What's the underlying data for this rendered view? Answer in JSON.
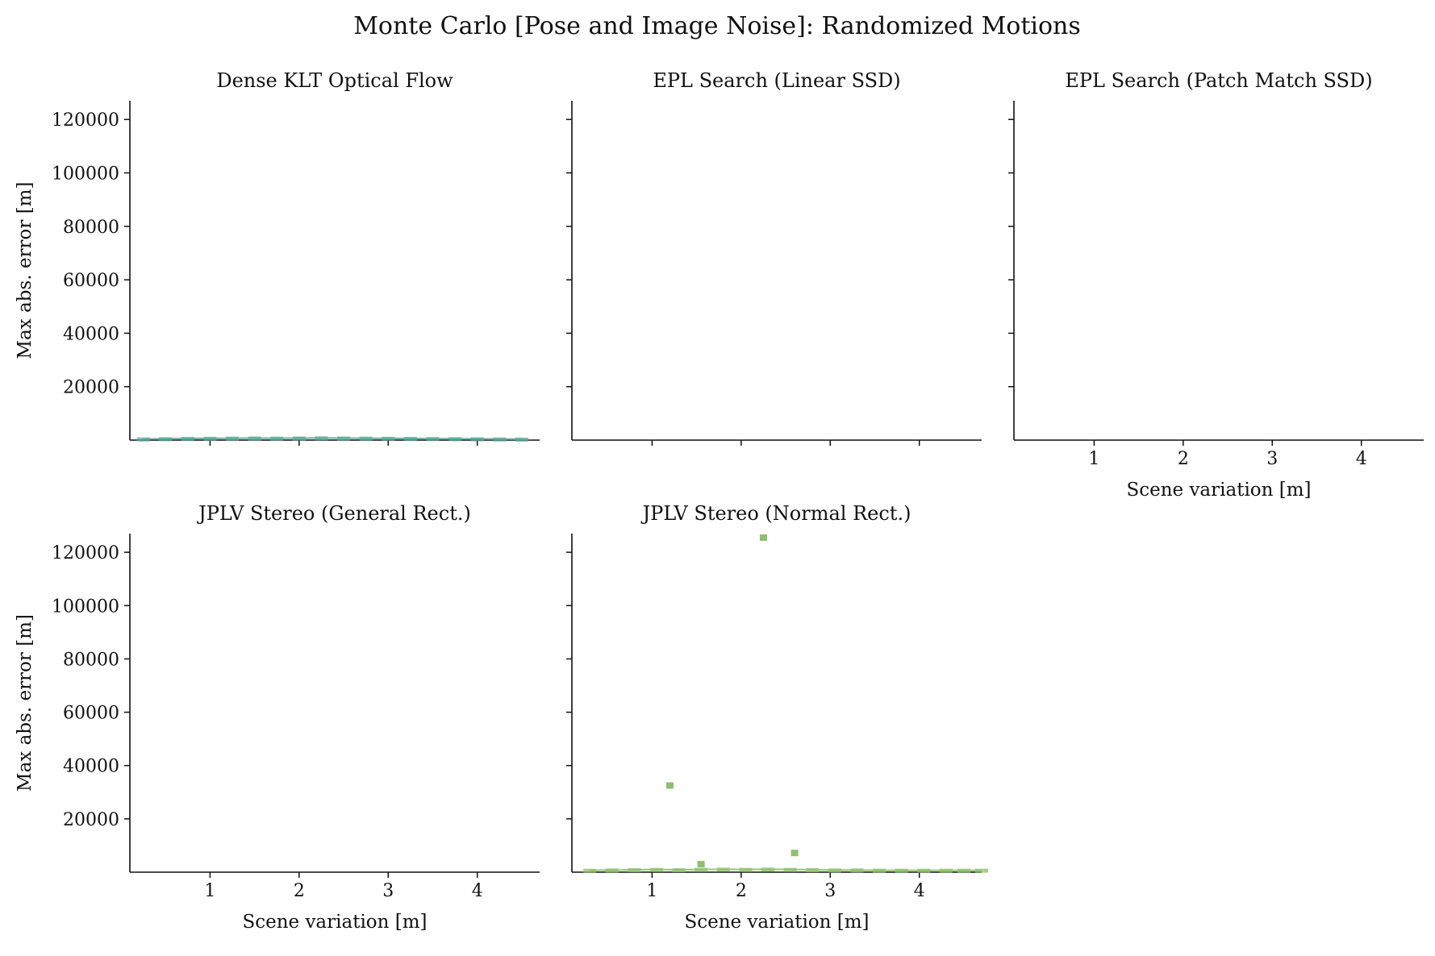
{
  "figure": {
    "title": "Monte Carlo [Pose and Image Noise]: Randomized Motions"
  },
  "chart_data": [
    {
      "type": "scatter",
      "title": "Dense KLT Optical Flow",
      "xlabel": "",
      "ylabel": "Max abs. error [m]",
      "xlim": [
        0.1,
        4.7
      ],
      "ylim": [
        0,
        127000
      ],
      "xticks": [
        1,
        2,
        3,
        4
      ],
      "yticks": [
        20000,
        40000,
        60000,
        80000,
        100000,
        120000
      ],
      "xtick_labels": [],
      "ytick_labels": [
        "20000",
        "40000",
        "60000",
        "80000",
        "100000",
        "120000"
      ],
      "color": "#5aaa9a",
      "series": [
        {
          "name": "band",
          "x": [
            0.25,
            0.5,
            0.75,
            1.0,
            1.25,
            1.5,
            1.75,
            2.0,
            2.25,
            2.5,
            2.75,
            3.0,
            3.25,
            3.5,
            3.75,
            4.0,
            4.25,
            4.5
          ],
          "y": [
            400,
            500,
            600,
            650,
            700,
            750,
            700,
            750,
            800,
            750,
            700,
            650,
            600,
            550,
            500,
            450,
            400,
            350
          ]
        }
      ]
    },
    {
      "type": "scatter",
      "title": "EPL Search (Linear SSD)",
      "xlabel": "",
      "ylabel": "",
      "xlim": [
        0.1,
        4.7
      ],
      "ylim": [
        0,
        127000
      ],
      "xticks": [
        1,
        2,
        3,
        4
      ],
      "yticks": [
        20000,
        40000,
        60000,
        80000,
        100000,
        120000
      ],
      "xtick_labels": [],
      "ytick_labels": [],
      "color": "#5aaa9a",
      "series": []
    },
    {
      "type": "scatter",
      "title": "EPL Search (Patch Match SSD)",
      "xlabel": "Scene variation [m]",
      "ylabel": "",
      "xlim": [
        0.1,
        4.7
      ],
      "ylim": [
        0,
        127000
      ],
      "xticks": [
        1,
        2,
        3,
        4
      ],
      "yticks": [
        20000,
        40000,
        60000,
        80000,
        100000,
        120000
      ],
      "xtick_labels": [
        "1",
        "2",
        "3",
        "4"
      ],
      "ytick_labels": [],
      "color": "#5aaa9a",
      "series": []
    },
    {
      "type": "scatter",
      "title": "JPLV Stereo (General Rect.)",
      "xlabel": "Scene variation [m]",
      "ylabel": "Max abs. error [m]",
      "xlim": [
        0.1,
        4.7
      ],
      "ylim": [
        0,
        127000
      ],
      "xticks": [
        1,
        2,
        3,
        4
      ],
      "yticks": [
        20000,
        40000,
        60000,
        80000,
        100000,
        120000
      ],
      "xtick_labels": [
        "1",
        "2",
        "3",
        "4"
      ],
      "ytick_labels": [
        "20000",
        "40000",
        "60000",
        "80000",
        "100000",
        "120000"
      ],
      "color": "#8cc06a",
      "series": []
    },
    {
      "type": "scatter",
      "title": "JPLV Stereo (Normal Rect.)",
      "xlabel": "Scene variation [m]",
      "ylabel": "",
      "xlim": [
        0.1,
        4.7
      ],
      "ylim": [
        0,
        127000
      ],
      "xticks": [
        1,
        2,
        3,
        4
      ],
      "yticks": [
        20000,
        40000,
        60000,
        80000,
        100000,
        120000
      ],
      "xtick_labels": [
        "1",
        "2",
        "3",
        "4"
      ],
      "ytick_labels": [],
      "color": "#8cc06a",
      "series": [
        {
          "name": "band",
          "x": [
            0.3,
            0.55,
            0.8,
            1.05,
            1.3,
            1.55,
            1.8,
            2.05,
            2.3,
            2.55,
            2.8,
            3.05,
            3.3,
            3.55,
            3.8,
            4.05,
            4.3,
            4.5,
            4.7
          ],
          "y": [
            700,
            800,
            900,
            1000,
            900,
            1000,
            1100,
            1000,
            1100,
            1000,
            900,
            800,
            800,
            700,
            700,
            700,
            700,
            700,
            700
          ]
        },
        {
          "name": "outliers",
          "x": [
            2.25,
            1.2,
            2.6,
            1.55
          ],
          "y": [
            125500,
            32500,
            7200,
            3000
          ]
        }
      ]
    }
  ]
}
